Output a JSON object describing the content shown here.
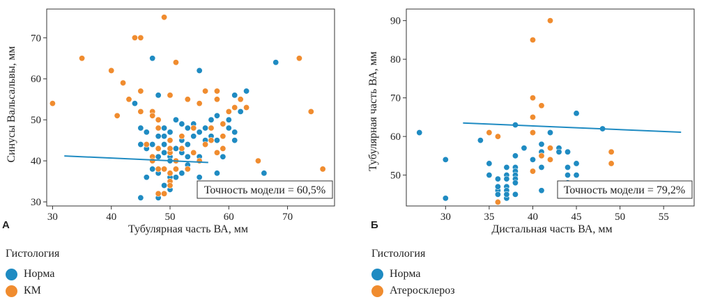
{
  "colors": {
    "blue": "#1f8bc2",
    "orange": "#f08c2f"
  },
  "chart_data": [
    {
      "type": "scatter",
      "panel_label": "А",
      "xlabel": "Тубулярная часть ВА, мм",
      "ylabel": "Синусы Вальсальвы, мм",
      "xlim": [
        29,
        78
      ],
      "ylim": [
        29,
        77
      ],
      "xticks": [
        30,
        40,
        50,
        60,
        70
      ],
      "yticks": [
        30,
        40,
        50,
        60,
        70
      ],
      "grid": false,
      "annotation": "Точность модели = 60,5%",
      "legend_title": "Гистология",
      "series": [
        {
          "name": "Норма",
          "color": "#1f8bc2",
          "x": [
            47,
            48,
            55,
            68,
            61,
            62,
            60,
            44,
            45,
            46,
            46,
            48,
            49,
            49,
            50,
            50,
            51,
            52,
            52,
            53,
            53,
            54,
            54,
            55,
            56,
            56,
            57,
            57,
            58,
            58,
            59,
            60,
            61,
            61,
            62,
            62,
            63,
            46,
            47,
            48,
            48,
            49,
            49,
            50,
            50,
            50,
            51,
            51,
            52,
            53,
            53,
            54,
            55,
            45,
            46,
            47,
            48,
            49,
            50,
            51,
            52,
            53,
            50,
            49,
            58,
            66,
            55,
            45,
            48,
            50
          ],
          "y": [
            65,
            56,
            62,
            64,
            56,
            55,
            50,
            54,
            48,
            47,
            44,
            46,
            46,
            48,
            47,
            45,
            50,
            49,
            45,
            48,
            44,
            49,
            46,
            47,
            48,
            45,
            50,
            46,
            51,
            45,
            41,
            48,
            47,
            45,
            52,
            55,
            57,
            43,
            44,
            43,
            41,
            44,
            42,
            43,
            41,
            40,
            43,
            40,
            42,
            41,
            39,
            42,
            41,
            44,
            36,
            38,
            37,
            38,
            36,
            36,
            37,
            38,
            42,
            34,
            37,
            37,
            36,
            31,
            31,
            33
          ]
        },
        {
          "name": "КМ",
          "color": "#f08c2f",
          "x": [
            49,
            44,
            45,
            35,
            40,
            42,
            30,
            43,
            41,
            45,
            45,
            47,
            47,
            48,
            48,
            50,
            50,
            51,
            52,
            53,
            54,
            55,
            56,
            57,
            58,
            58,
            59,
            59,
            60,
            61,
            62,
            63,
            46,
            47,
            48,
            49,
            50,
            50,
            51,
            52,
            53,
            54,
            55,
            56,
            57,
            58,
            59,
            47,
            48,
            49,
            50,
            50,
            50,
            51,
            48,
            49,
            74,
            76,
            72,
            65
          ],
          "y": [
            75,
            70,
            70,
            65,
            62,
            59,
            54,
            55,
            51,
            57,
            52,
            52,
            51,
            48,
            50,
            56,
            45,
            64,
            46,
            55,
            48,
            54,
            57,
            48,
            57,
            55,
            49,
            46,
            52,
            53,
            55,
            53,
            44,
            41,
            43,
            38,
            42,
            43,
            40,
            43,
            38,
            42,
            40,
            44,
            45,
            42,
            43,
            40,
            38,
            38,
            37,
            35,
            34,
            38,
            32,
            32,
            52,
            38,
            65,
            40
          ]
        }
      ],
      "trend": {
        "color": "#1f8bc2",
        "x": [
          32,
          56.5
        ],
        "y": [
          41.2,
          39.6
        ]
      }
    },
    {
      "type": "scatter",
      "panel_label": "Б",
      "xlabel": "Дистальная часть ВА, мм",
      "ylabel": "Тубулярная часть ВА, мм",
      "xlim": [
        25.5,
        58.5
      ],
      "ylim": [
        42,
        93
      ],
      "xticks": [
        30,
        35,
        40,
        45,
        50,
        55
      ],
      "yticks": [
        50,
        60,
        70,
        80,
        90
      ],
      "grid": false,
      "annotation": "Точность модели = 79,2%",
      "legend_title": "Гистология",
      "series": [
        {
          "name": "Норма",
          "color": "#1f8bc2",
          "x": [
            27,
            30,
            30,
            34,
            35,
            35,
            36,
            36,
            36,
            36,
            37,
            37,
            37,
            37,
            37,
            37,
            38,
            38,
            38,
            38,
            38,
            38,
            39,
            40,
            40,
            41,
            41,
            41,
            41,
            41,
            42,
            43,
            43,
            44,
            44,
            44,
            44,
            45,
            45,
            45,
            48
          ],
          "y": [
            61,
            54,
            44,
            59,
            53,
            50,
            49,
            46,
            45,
            43,
            52,
            50,
            49,
            47,
            46,
            44,
            55,
            52,
            51,
            50,
            49,
            48,
            57,
            54,
            51,
            58,
            56,
            55,
            52,
            46,
            61,
            57,
            56,
            56,
            52,
            50,
            48,
            53,
            50,
            66,
            62
          ],
          "extra_x": [
            38,
            36,
            37,
            38
          ],
          "extra_y": [
            63,
            47,
            45,
            45
          ]
        },
        {
          "name": "Атеросклероз",
          "color": "#f08c2f",
          "x": [
            35,
            36,
            36,
            40,
            40,
            40,
            40,
            41,
            41,
            42,
            42,
            42,
            49,
            49,
            40
          ],
          "y": [
            61,
            60,
            43,
            85,
            70,
            65,
            61,
            68,
            55,
            90,
            57,
            54,
            56,
            53,
            51
          ]
        }
      ],
      "trend": {
        "color": "#1f8bc2",
        "x": [
          32,
          57
        ],
        "y": [
          63.5,
          61.1
        ]
      }
    }
  ]
}
